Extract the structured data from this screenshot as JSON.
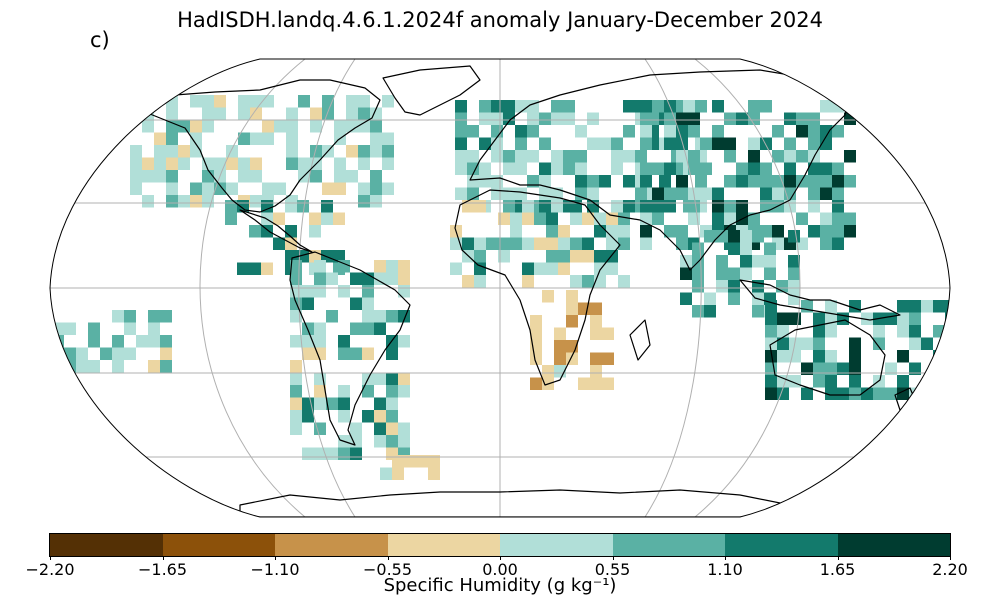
{
  "title": "HadISDH.landq.4.6.1.2024f anomaly January-December 2024",
  "panel_label": "c)",
  "colorbar": {
    "label": "Specific Humidity (g kg⁻¹)",
    "ticks": [
      "−2.20",
      "−1.65",
      "−1.10",
      "−0.55",
      "0.00",
      "0.55",
      "1.10",
      "1.65",
      "2.20"
    ],
    "colors": [
      "#543005",
      "#8c510a",
      "#c7924a",
      "#ecd6a2",
      "#b1dfd8",
      "#5ab1a4",
      "#137a6c",
      "#003c30"
    ]
  },
  "map": {
    "projection": "robinson-like",
    "gridlines": true,
    "gridline_color": "#b0b0b0",
    "land_outline_color": "#000000"
  }
}
